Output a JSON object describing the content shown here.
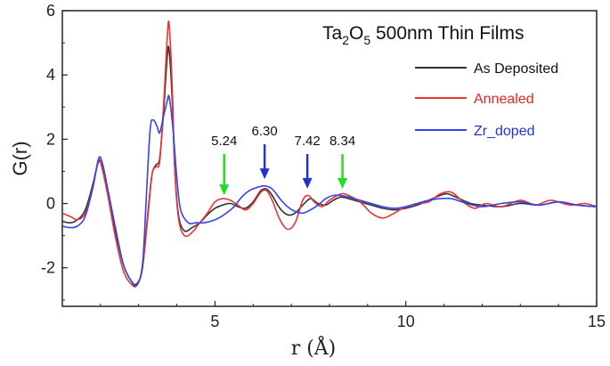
{
  "chart_data": {
    "type": "line",
    "title_parts": [
      "Ta",
      "2",
      "O",
      "5",
      " 500nm Thin Films"
    ],
    "xlabel": "r (Å)",
    "ylabel": "G(r)",
    "xlim": [
      1,
      15
    ],
    "ylim": [
      -3.2,
      6
    ],
    "x_ticks": [
      5,
      10,
      15
    ],
    "y_ticks": [
      -2,
      0,
      2,
      4,
      6
    ],
    "grid": false,
    "legend_position": "top-right",
    "series": [
      {
        "name": "As Deposited",
        "color": "#333333",
        "points": [
          [
            1.0,
            -0.55
          ],
          [
            1.2,
            -0.6
          ],
          [
            1.4,
            -0.5
          ],
          [
            1.6,
            -0.2
          ],
          [
            1.8,
            0.6
          ],
          [
            1.95,
            1.3
          ],
          [
            2.05,
            1.1
          ],
          [
            2.2,
            0.3
          ],
          [
            2.4,
            -0.9
          ],
          [
            2.6,
            -1.9
          ],
          [
            2.8,
            -2.4
          ],
          [
            2.95,
            -2.5
          ],
          [
            3.1,
            -2.0
          ],
          [
            3.25,
            -0.2
          ],
          [
            3.35,
            0.9
          ],
          [
            3.45,
            1.2
          ],
          [
            3.55,
            1.4
          ],
          [
            3.65,
            2.8
          ],
          [
            3.75,
            4.6
          ],
          [
            3.8,
            4.75
          ],
          [
            3.88,
            3.2
          ],
          [
            3.95,
            1.0
          ],
          [
            4.05,
            -0.4
          ],
          [
            4.2,
            -0.85
          ],
          [
            4.4,
            -0.75
          ],
          [
            4.6,
            -0.6
          ],
          [
            4.8,
            -0.35
          ],
          [
            5.0,
            -0.15
          ],
          [
            5.2,
            -0.05
          ],
          [
            5.4,
            0.0
          ],
          [
            5.6,
            -0.1
          ],
          [
            5.8,
            -0.15
          ],
          [
            6.0,
            0.05
          ],
          [
            6.2,
            0.4
          ],
          [
            6.35,
            0.45
          ],
          [
            6.5,
            0.25
          ],
          [
            6.7,
            -0.15
          ],
          [
            6.9,
            -0.35
          ],
          [
            7.1,
            -0.3
          ],
          [
            7.3,
            -0.05
          ],
          [
            7.5,
            0.15
          ],
          [
            7.7,
            0.0
          ],
          [
            7.9,
            -0.05
          ],
          [
            8.1,
            0.1
          ],
          [
            8.3,
            0.2
          ],
          [
            8.5,
            0.15
          ],
          [
            8.8,
            0.05
          ],
          [
            9.1,
            -0.05
          ],
          [
            9.4,
            -0.15
          ],
          [
            9.7,
            -0.2
          ],
          [
            10.0,
            -0.15
          ],
          [
            10.3,
            -0.05
          ],
          [
            10.6,
            0.1
          ],
          [
            10.9,
            0.25
          ],
          [
            11.1,
            0.3
          ],
          [
            11.4,
            0.15
          ],
          [
            11.7,
            0.0
          ],
          [
            12.0,
            -0.05
          ],
          [
            12.5,
            -0.1
          ],
          [
            13.0,
            0.0
          ],
          [
            13.5,
            -0.05
          ],
          [
            14.0,
            0.05
          ],
          [
            14.5,
            -0.05
          ],
          [
            15.0,
            -0.1
          ]
        ]
      },
      {
        "name": "Annealed",
        "color": "#ee3333",
        "points": [
          [
            1.0,
            -0.3
          ],
          [
            1.2,
            -0.4
          ],
          [
            1.4,
            -0.5
          ],
          [
            1.6,
            -0.3
          ],
          [
            1.8,
            0.5
          ],
          [
            1.95,
            1.35
          ],
          [
            2.05,
            1.05
          ],
          [
            2.2,
            0.2
          ],
          [
            2.4,
            -1.1
          ],
          [
            2.6,
            -2.1
          ],
          [
            2.8,
            -2.5
          ],
          [
            2.95,
            -2.55
          ],
          [
            3.1,
            -2.0
          ],
          [
            3.25,
            -0.3
          ],
          [
            3.35,
            0.9
          ],
          [
            3.45,
            1.15
          ],
          [
            3.55,
            1.3
          ],
          [
            3.65,
            3.0
          ],
          [
            3.75,
            5.2
          ],
          [
            3.8,
            5.55
          ],
          [
            3.88,
            3.6
          ],
          [
            3.95,
            1.0
          ],
          [
            4.05,
            -0.5
          ],
          [
            4.2,
            -1.0
          ],
          [
            4.4,
            -0.9
          ],
          [
            4.6,
            -0.6
          ],
          [
            4.8,
            -0.3
          ],
          [
            5.0,
            0.05
          ],
          [
            5.2,
            0.15
          ],
          [
            5.4,
            0.1
          ],
          [
            5.6,
            -0.05
          ],
          [
            5.8,
            -0.2
          ],
          [
            6.0,
            0.0
          ],
          [
            6.2,
            0.35
          ],
          [
            6.35,
            0.4
          ],
          [
            6.5,
            0.1
          ],
          [
            6.7,
            -0.5
          ],
          [
            6.9,
            -0.8
          ],
          [
            7.1,
            -0.6
          ],
          [
            7.3,
            0.1
          ],
          [
            7.45,
            0.25
          ],
          [
            7.6,
            0.05
          ],
          [
            7.8,
            -0.1
          ],
          [
            8.0,
            0.1
          ],
          [
            8.3,
            0.3
          ],
          [
            8.5,
            0.25
          ],
          [
            8.8,
            0.05
          ],
          [
            9.1,
            -0.3
          ],
          [
            9.4,
            -0.45
          ],
          [
            9.7,
            -0.3
          ],
          [
            10.0,
            -0.1
          ],
          [
            10.3,
            0.0
          ],
          [
            10.6,
            0.05
          ],
          [
            10.9,
            0.3
          ],
          [
            11.2,
            0.35
          ],
          [
            11.5,
            0.05
          ],
          [
            11.8,
            -0.15
          ],
          [
            12.1,
            0.0
          ],
          [
            12.5,
            -0.1
          ],
          [
            13.0,
            0.1
          ],
          [
            13.4,
            -0.05
          ],
          [
            13.8,
            0.1
          ],
          [
            14.3,
            -0.05
          ],
          [
            14.7,
            0.0
          ],
          [
            15.0,
            -0.1
          ]
        ]
      },
      {
        "name": "Zr_doped",
        "color": "#3344ee",
        "points": [
          [
            1.0,
            -0.7
          ],
          [
            1.2,
            -0.75
          ],
          [
            1.4,
            -0.7
          ],
          [
            1.6,
            -0.4
          ],
          [
            1.8,
            0.5
          ],
          [
            1.95,
            1.4
          ],
          [
            2.05,
            1.25
          ],
          [
            2.2,
            0.4
          ],
          [
            2.4,
            -0.8
          ],
          [
            2.6,
            -1.9
          ],
          [
            2.8,
            -2.4
          ],
          [
            2.95,
            -2.55
          ],
          [
            3.1,
            -1.9
          ],
          [
            3.2,
            0.2
          ],
          [
            3.3,
            2.3
          ],
          [
            3.38,
            2.6
          ],
          [
            3.48,
            2.4
          ],
          [
            3.55,
            2.2
          ],
          [
            3.65,
            2.7
          ],
          [
            3.75,
            3.2
          ],
          [
            3.8,
            3.3
          ],
          [
            3.9,
            2.3
          ],
          [
            4.0,
            0.8
          ],
          [
            4.1,
            -0.2
          ],
          [
            4.3,
            -0.6
          ],
          [
            4.5,
            -0.6
          ],
          [
            4.7,
            -0.6
          ],
          [
            4.9,
            -0.55
          ],
          [
            5.1,
            -0.45
          ],
          [
            5.3,
            -0.3
          ],
          [
            5.5,
            -0.1
          ],
          [
            5.7,
            0.2
          ],
          [
            5.9,
            0.4
          ],
          [
            6.1,
            0.5
          ],
          [
            6.3,
            0.55
          ],
          [
            6.5,
            0.45
          ],
          [
            6.7,
            0.15
          ],
          [
            6.9,
            -0.1
          ],
          [
            7.1,
            -0.25
          ],
          [
            7.3,
            -0.3
          ],
          [
            7.5,
            -0.2
          ],
          [
            7.7,
            -0.05
          ],
          [
            7.9,
            0.15
          ],
          [
            8.1,
            0.25
          ],
          [
            8.3,
            0.25
          ],
          [
            8.5,
            0.2
          ],
          [
            8.8,
            0.1
          ],
          [
            9.1,
            0.0
          ],
          [
            9.4,
            -0.1
          ],
          [
            9.7,
            -0.15
          ],
          [
            10.0,
            -0.1
          ],
          [
            10.3,
            0.0
          ],
          [
            10.6,
            0.1
          ],
          [
            10.9,
            0.15
          ],
          [
            11.2,
            0.15
          ],
          [
            11.6,
            0.0
          ],
          [
            12.0,
            -0.1
          ],
          [
            12.5,
            0.0
          ],
          [
            13.0,
            0.05
          ],
          [
            13.5,
            -0.05
          ],
          [
            14.0,
            0.05
          ],
          [
            14.5,
            -0.05
          ],
          [
            15.0,
            -0.1
          ]
        ]
      }
    ],
    "annotations": [
      {
        "label": "5.24",
        "x": 5.24,
        "arrow_tip_y": 0.15,
        "color": "#22dd22"
      },
      {
        "label": "6.30",
        "x": 6.3,
        "arrow_tip_y": 0.65,
        "color": "#2233cc"
      },
      {
        "label": "7.42",
        "x": 7.42,
        "arrow_tip_y": 0.35,
        "color": "#2233cc"
      },
      {
        "label": "8.34",
        "x": 8.34,
        "arrow_tip_y": 0.35,
        "color": "#22dd22"
      }
    ]
  }
}
